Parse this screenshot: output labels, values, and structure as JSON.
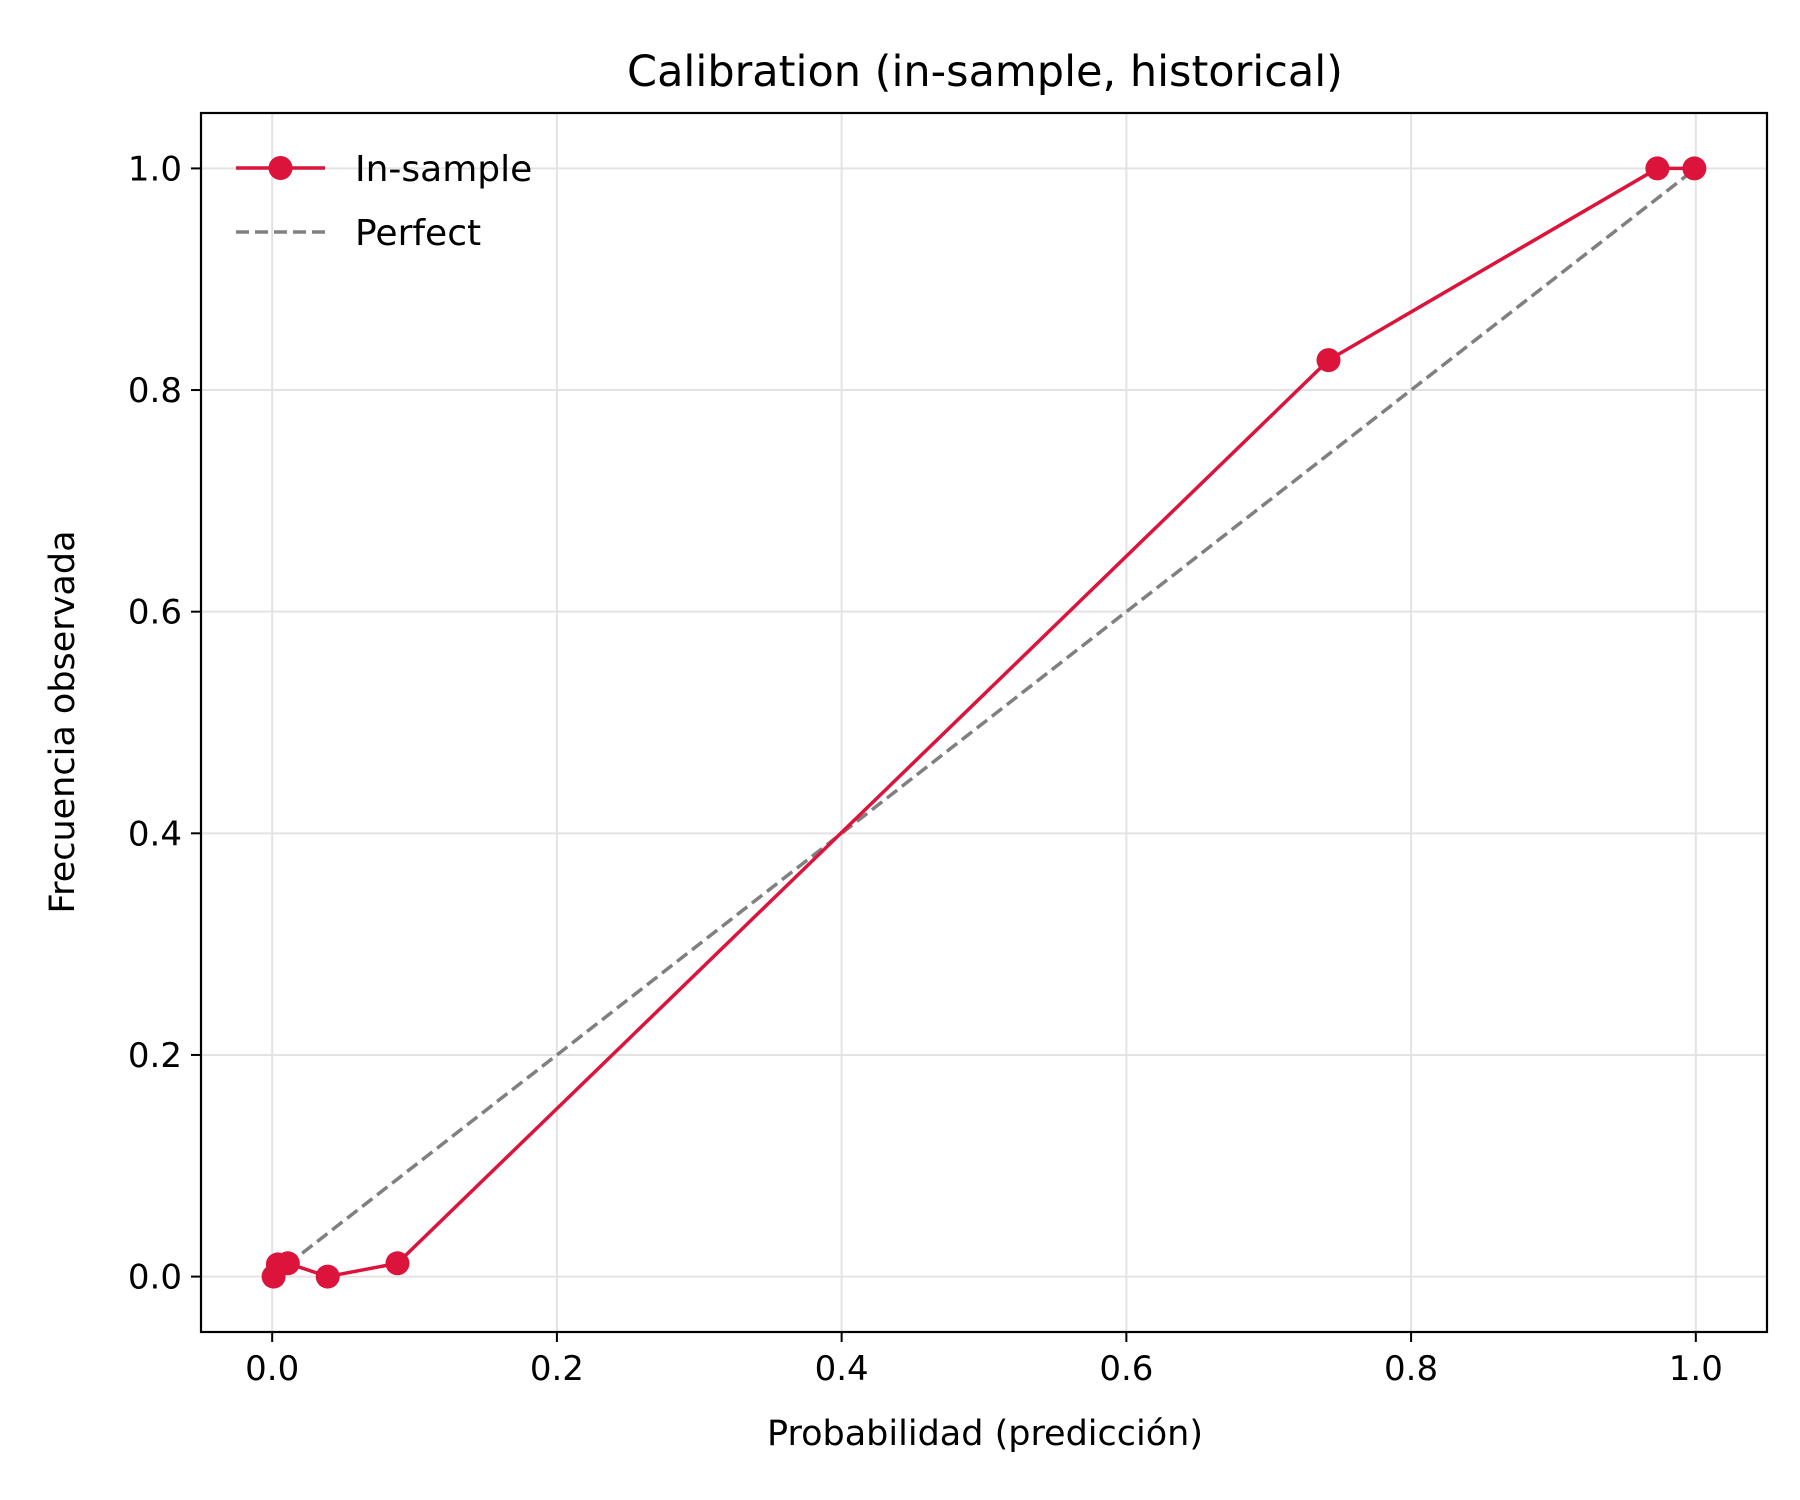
{
  "chart_data": {
    "type": "line",
    "title": "Calibration (in-sample, historical)",
    "xlabel": "Probabilidad (predicción)",
    "ylabel": "Frecuencia observada",
    "xlim": [
      -0.05,
      1.05
    ],
    "ylim": [
      -0.05,
      1.05
    ],
    "x_ticks": [
      "0.0",
      "0.2",
      "0.4",
      "0.6",
      "0.8",
      "1.0"
    ],
    "y_ticks": [
      "0.0",
      "0.2",
      "0.4",
      "0.6",
      "0.8",
      "1.0"
    ],
    "grid": true,
    "legend_position": "top-left",
    "series": [
      {
        "name": "In-sample",
        "style": "solid",
        "marker": "circle",
        "color": "#dc143c",
        "x": [
          0.001,
          0.004,
          0.011,
          0.039,
          0.088,
          0.742,
          0.973,
          0.999
        ],
        "y": [
          0.0,
          0.011,
          0.012,
          0.0,
          0.012,
          0.827,
          1.0,
          1.0
        ]
      },
      {
        "name": "Perfect",
        "style": "dashed",
        "marker": "none",
        "color": "#808080",
        "x": [
          0.0,
          1.0
        ],
        "y": [
          0.0,
          1.0
        ]
      }
    ]
  }
}
